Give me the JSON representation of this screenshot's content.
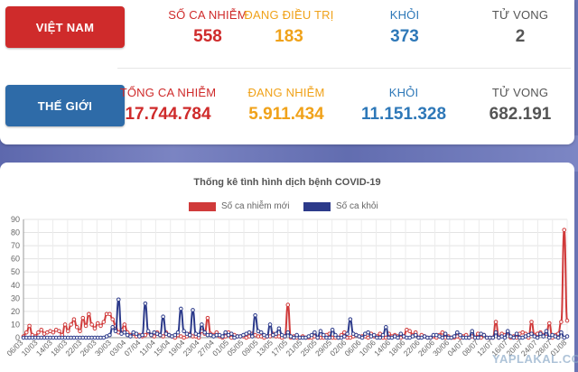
{
  "vietnam": {
    "region_label": "VIỆT NAM",
    "stats": [
      {
        "label": "SỐ CA NHIỄM",
        "value": "558",
        "color": "#cf2b2b"
      },
      {
        "label": "ĐANG ĐIỀU TRỊ",
        "value": "183",
        "color": "#f0a21a"
      },
      {
        "label": "KHỎI",
        "value": "373",
        "color": "#2e78b8"
      },
      {
        "label": "TỬ VONG",
        "value": "2",
        "color": "#555555"
      }
    ]
  },
  "world": {
    "region_label": "THẾ GIỚI",
    "stats": [
      {
        "label": "TỔNG CA NHIỄM",
        "value": "17.744.784",
        "color": "#cf2b2b"
      },
      {
        "label": "ĐANG NHIỄM",
        "value": "5.911.434",
        "color": "#f0a21a"
      },
      {
        "label": "KHỎI",
        "value": "11.151.328",
        "color": "#2e78b8"
      },
      {
        "label": "TỬ VONG",
        "value": "682.191",
        "color": "#555555"
      }
    ]
  },
  "watermark": "YAPLAKAL.COM",
  "chart_data": {
    "type": "line",
    "title": "Thống kê tình hình dịch bệnh COVID-19",
    "ylim": [
      0,
      90
    ],
    "yticks": [
      0,
      10,
      20,
      30,
      40,
      50,
      60,
      70,
      80,
      90
    ],
    "grid": true,
    "legend_position": "top",
    "x_tick_labels": [
      "06/03",
      "10/03",
      "14/03",
      "18/03",
      "22/03",
      "26/03",
      "30/03",
      "03/04",
      "07/04",
      "11/04",
      "15/04",
      "19/04",
      "23/04",
      "27/04",
      "01/05",
      "05/05",
      "09/05",
      "13/05",
      "17/05",
      "21/05",
      "25/05",
      "29/05",
      "02/06",
      "06/06",
      "10/06",
      "14/06",
      "18/06",
      "22/06",
      "26/06",
      "30/06",
      "04/07",
      "08/07",
      "12/07",
      "16/07",
      "20/07",
      "24/07",
      "28/07",
      "01/08"
    ],
    "series": [
      {
        "name": "Số ca nhiễm mới",
        "color": "#d03a3a",
        "values": [
          1,
          4,
          9,
          2,
          1,
          4,
          6,
          3,
          4,
          5,
          4,
          6,
          5,
          2,
          10,
          5,
          10,
          14,
          8,
          5,
          15,
          9,
          18,
          10,
          7,
          11,
          9,
          12,
          18,
          18,
          14,
          9,
          4,
          6,
          10,
          4,
          2,
          3,
          1,
          2,
          1,
          2,
          4,
          2,
          1,
          4,
          2,
          1,
          4,
          2,
          1,
          0,
          2,
          1,
          0,
          1,
          3,
          1,
          1,
          0,
          5,
          3,
          15,
          3,
          2,
          4,
          1,
          0,
          1,
          4,
          0,
          2,
          1,
          1,
          1,
          0,
          1,
          3,
          2,
          1,
          1,
          0,
          1,
          1,
          3,
          1,
          1,
          0,
          1,
          25,
          0,
          1,
          0,
          0,
          1,
          0,
          0,
          0,
          1,
          0,
          0,
          0,
          2,
          3,
          0,
          0,
          0,
          2,
          4,
          0,
          0,
          1,
          2,
          1,
          1,
          1,
          0,
          3,
          1,
          1,
          3,
          0,
          0,
          3,
          1,
          2,
          1,
          0,
          1,
          6,
          5,
          2,
          4,
          0,
          2,
          1,
          0,
          0,
          1,
          0,
          2,
          4,
          0,
          1,
          0,
          0,
          1,
          0,
          1,
          2,
          0,
          1,
          0,
          3,
          0,
          2,
          0,
          0,
          0,
          12,
          0,
          3,
          2,
          4,
          0,
          1,
          0,
          3,
          4,
          3,
          0,
          12,
          2,
          3,
          4,
          2,
          3,
          11,
          0,
          2,
          3,
          12,
          82,
          13
        ],
        "note": ""
      },
      {
        "name": "Số ca khỏi",
        "color": "#2c3a8a",
        "values": [
          0,
          0,
          0,
          0,
          0,
          0,
          0,
          0,
          0,
          0,
          0,
          0,
          0,
          0,
          0,
          0,
          0,
          0,
          0,
          0,
          0,
          0,
          0,
          0,
          0,
          0,
          0,
          0,
          1,
          2,
          8,
          5,
          29,
          3,
          4,
          2,
          1,
          4,
          3,
          1,
          2,
          26,
          5,
          2,
          4,
          3,
          2,
          16,
          3,
          2,
          1,
          2,
          4,
          22,
          5,
          3,
          2,
          21,
          3,
          2,
          10,
          4,
          2,
          2,
          1,
          2,
          2,
          1,
          4,
          2,
          3,
          0,
          1,
          1,
          2,
          3,
          4,
          1,
          17,
          5,
          4,
          2,
          1,
          10,
          2,
          3,
          7,
          2,
          1,
          4,
          1,
          0,
          2,
          0,
          0,
          0,
          1,
          2,
          4,
          0,
          5,
          2,
          0,
          0,
          6,
          2,
          0,
          0,
          1,
          3,
          14,
          3,
          2,
          1,
          0,
          3,
          4,
          1,
          2,
          0,
          0,
          2,
          8,
          0,
          0,
          1,
          0,
          3,
          1,
          0,
          0,
          1,
          2,
          0,
          0,
          1,
          0,
          0,
          2,
          2,
          1,
          0,
          3,
          0,
          0,
          1,
          4,
          2,
          0,
          0,
          0,
          5,
          0,
          0,
          3,
          2,
          0,
          0,
          0,
          4,
          0,
          1,
          0,
          5,
          1,
          0,
          3,
          0,
          0,
          1,
          2,
          3,
          1,
          0,
          3,
          1,
          5,
          0,
          2,
          1,
          0,
          4,
          0,
          1
        ]
      }
    ]
  }
}
